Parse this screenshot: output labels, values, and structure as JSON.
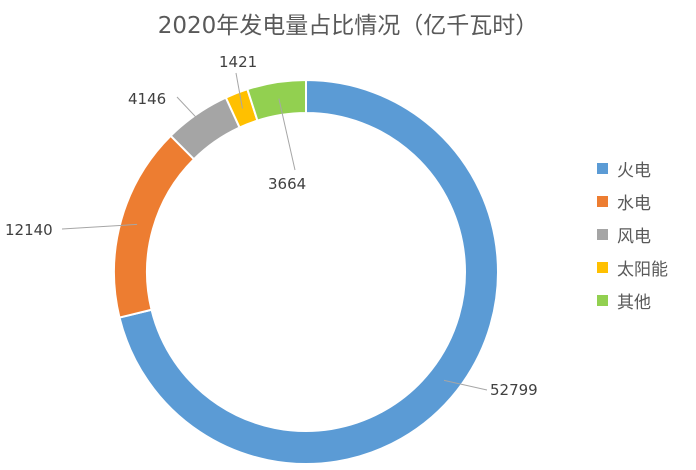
{
  "chart_data": {
    "type": "pie",
    "title": "2020年发电量占比情况（亿千瓦时）",
    "categories": [
      "火电",
      "水电",
      "风电",
      "太阳能",
      "其他"
    ],
    "values": [
      52799,
      12140,
      4146,
      1421,
      3664
    ],
    "colors": [
      "#5B9BD5",
      "#ED7D31",
      "#A5A5A5",
      "#FFC000",
      "#92D050"
    ],
    "data_labels": [
      "52799",
      "12140",
      "4146",
      "1421",
      "3664"
    ],
    "donut": true,
    "legend_position": "right"
  }
}
